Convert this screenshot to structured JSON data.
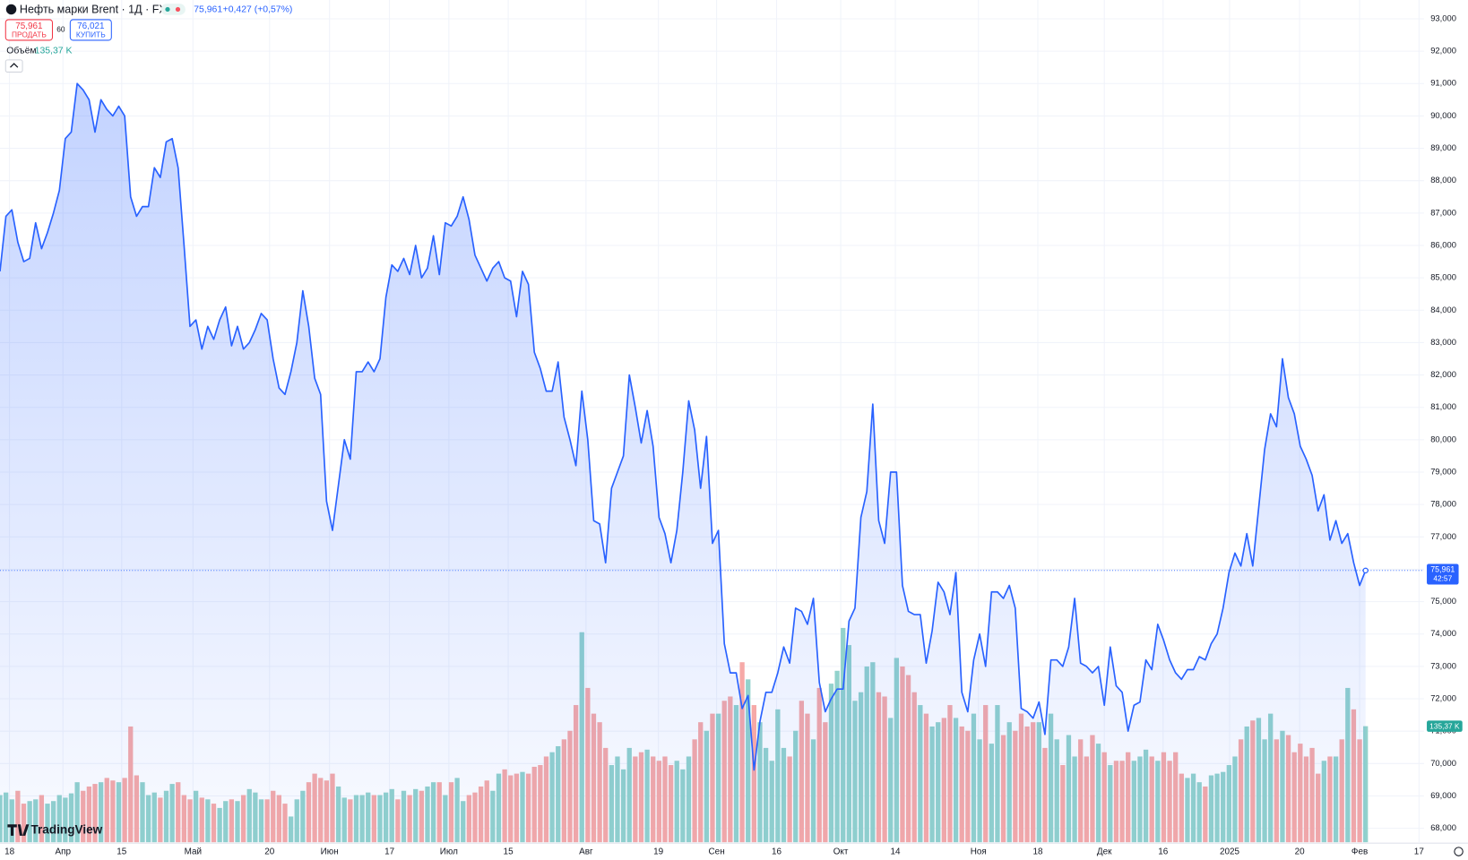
{
  "header": {
    "title": "Нефть марки Brent · 1Д · FX",
    "change": "+0,427 (+0,57%)",
    "sell": {
      "price": "75,961",
      "label": "ПРОДАТЬ"
    },
    "spread": "60",
    "buy": {
      "price": "76,021",
      "label": "КУПИТЬ"
    },
    "volume_legend": {
      "label": "Объём",
      "value": "135,37 K"
    },
    "brand": "TradingView"
  },
  "chart_data": {
    "type": "line",
    "color": "#2962ff",
    "values": [
      85.2,
      86.9,
      87.1,
      86.1,
      85.5,
      85.6,
      86.7,
      85.9,
      86.4,
      87.0,
      87.7,
      89.3,
      89.5,
      91.0,
      90.8,
      90.5,
      89.5,
      90.5,
      90.2,
      90.0,
      90.3,
      90.0,
      87.5,
      86.9,
      87.2,
      87.2,
      88.4,
      88.1,
      89.2,
      89.3,
      88.4,
      86.0,
      83.5,
      83.7,
      82.8,
      83.5,
      83.1,
      83.7,
      84.1,
      82.9,
      83.5,
      82.8,
      83.0,
      83.4,
      83.9,
      83.7,
      82.5,
      81.6,
      81.4,
      82.1,
      83.0,
      84.6,
      83.5,
      81.9,
      81.4,
      78.1,
      77.2,
      78.6,
      80.0,
      79.4,
      82.1,
      82.1,
      82.4,
      82.1,
      82.5,
      84.4,
      85.4,
      85.2,
      85.6,
      85.1,
      86.0,
      85.0,
      85.3,
      86.3,
      85.1,
      86.7,
      86.6,
      86.9,
      87.5,
      86.8,
      85.7,
      85.3,
      84.9,
      85.3,
      85.5,
      85.0,
      84.9,
      83.8,
      85.2,
      84.8,
      82.7,
      82.2,
      81.5,
      81.5,
      82.4,
      80.7,
      80.0,
      79.2,
      81.5,
      80.0,
      77.5,
      77.4,
      76.2,
      78.5,
      79.0,
      79.5,
      82.0,
      81.0,
      79.9,
      80.9,
      79.8,
      77.6,
      77.1,
      76.2,
      77.2,
      79.0,
      81.2,
      80.3,
      78.5,
      80.1,
      76.8,
      77.2,
      73.7,
      72.8,
      72.8,
      71.7,
      72.1,
      69.8,
      71.3,
      72.2,
      72.2,
      72.8,
      73.6,
      73.1,
      74.8,
      74.7,
      74.3,
      75.1,
      72.5,
      71.6,
      72.0,
      72.3,
      72.3,
      74.4,
      74.8,
      77.6,
      78.4,
      81.1,
      77.5,
      76.8,
      79.0,
      79.0,
      75.5,
      74.7,
      74.6,
      74.6,
      73.1,
      74.1,
      75.6,
      75.3,
      74.6,
      75.9,
      72.2,
      71.6,
      73.2,
      74.0,
      73.0,
      75.3,
      75.3,
      75.1,
      75.5,
      74.8,
      71.7,
      71.6,
      71.4,
      71.9,
      70.9,
      73.2,
      73.2,
      73.0,
      73.6,
      75.1,
      73.1,
      73.0,
      72.8,
      73.0,
      71.8,
      73.6,
      72.4,
      72.2,
      71.0,
      71.8,
      71.9,
      73.2,
      72.9,
      74.3,
      73.8,
      73.2,
      72.8,
      72.6,
      72.9,
      72.9,
      73.3,
      73.2,
      73.7,
      74.0,
      74.8,
      75.9,
      76.5,
      76.1,
      77.1,
      76.1,
      77.9,
      79.7,
      80.8,
      80.4,
      82.5,
      81.3,
      80.8,
      79.8,
      79.4,
      78.9,
      77.8,
      78.3,
      76.9,
      77.5,
      76.8,
      77.1,
      76.2,
      75.5,
      75.961
    ],
    "volume": [
      55,
      58,
      50,
      60,
      45,
      48,
      50,
      55,
      45,
      48,
      55,
      52,
      57,
      70,
      60,
      65,
      68,
      70,
      75,
      72,
      70,
      75,
      135,
      78,
      70,
      55,
      58,
      52,
      60,
      68,
      70,
      55,
      50,
      60,
      52,
      50,
      45,
      40,
      48,
      50,
      48,
      55,
      62,
      58,
      50,
      50,
      60,
      55,
      45,
      30,
      50,
      60,
      70,
      80,
      75,
      72,
      80,
      65,
      52,
      50,
      55,
      55,
      58,
      55,
      55,
      58,
      62,
      50,
      60,
      55,
      62,
      60,
      65,
      70,
      70,
      55,
      70,
      75,
      48,
      55,
      58,
      65,
      72,
      60,
      80,
      85,
      78,
      80,
      82,
      80,
      88,
      90,
      100,
      105,
      112,
      120,
      130,
      160,
      245,
      180,
      150,
      140,
      110,
      90,
      100,
      85,
      110,
      100,
      105,
      108,
      100,
      95,
      100,
      90,
      95,
      85,
      100,
      120,
      140,
      130,
      150,
      150,
      165,
      170,
      160,
      210,
      190,
      160,
      140,
      110,
      95,
      155,
      110,
      100,
      130,
      165,
      150,
      120,
      180,
      140,
      185,
      200,
      250,
      230,
      165,
      175,
      205,
      210,
      175,
      170,
      145,
      215,
      205,
      195,
      175,
      160,
      150,
      135,
      140,
      145,
      160,
      145,
      135,
      130,
      150,
      120,
      160,
      115,
      160,
      125,
      140,
      130,
      150,
      135,
      140,
      140,
      110,
      150,
      120,
      90,
      125,
      100,
      120,
      100,
      125,
      115,
      105,
      90,
      95,
      95,
      105,
      95,
      100,
      108,
      100,
      95,
      105,
      95,
      105,
      80,
      75,
      80,
      70,
      65,
      78,
      80,
      82,
      90,
      100,
      120,
      135,
      142,
      145,
      120,
      150,
      120,
      130,
      125,
      105,
      115,
      100,
      110,
      80,
      95,
      100,
      100,
      120,
      180,
      155,
      120,
      135.37
    ],
    "volume_colors": {
      "up": "#92d2cc",
      "down": "#f6a9a7"
    },
    "ylim": [
      67.57,
      93.58
    ],
    "yticks": [
      {
        "value": 68,
        "label": "68,000"
      },
      {
        "value": 69,
        "label": "69,000"
      },
      {
        "value": 70,
        "label": "70,000"
      },
      {
        "value": 71,
        "label": "71,000"
      },
      {
        "value": 72,
        "label": "72,000"
      },
      {
        "value": 73,
        "label": "73,000"
      },
      {
        "value": 74,
        "label": "74,000"
      },
      {
        "value": 75,
        "label": "75,000"
      },
      {
        "value": 76,
        "label": "76,000"
      },
      {
        "value": 77,
        "label": "77,000"
      },
      {
        "value": 78,
        "label": "78,000"
      },
      {
        "value": 79,
        "label": "79,000"
      },
      {
        "value": 80,
        "label": "80,000"
      },
      {
        "value": 81,
        "label": "81,000"
      },
      {
        "value": 82,
        "label": "82,000"
      },
      {
        "value": 83,
        "label": "83,000"
      },
      {
        "value": 84,
        "label": "84,000"
      },
      {
        "value": 85,
        "label": "85,000"
      },
      {
        "value": 86,
        "label": "86,000"
      },
      {
        "value": 87,
        "label": "87,000"
      },
      {
        "value": 88,
        "label": "88,000"
      },
      {
        "value": 89,
        "label": "89,000"
      },
      {
        "value": 90,
        "label": "90,000"
      },
      {
        "value": 91,
        "label": "91,000"
      },
      {
        "value": 92,
        "label": "92,000"
      },
      {
        "value": 93,
        "label": "93,000"
      }
    ],
    "xlim": [
      0,
      240
    ],
    "xticks": [
      {
        "value": 1.6,
        "label": "18"
      },
      {
        "value": 10.6,
        "label": "Апр"
      },
      {
        "value": 20.5,
        "label": "15"
      },
      {
        "value": 32.5,
        "label": "Май"
      },
      {
        "value": 45.4,
        "label": "20"
      },
      {
        "value": 55.5,
        "label": "Июн"
      },
      {
        "value": 65.6,
        "label": "17"
      },
      {
        "value": 75.6,
        "label": "Июл"
      },
      {
        "value": 85.6,
        "label": "15"
      },
      {
        "value": 98.7,
        "label": "Авг"
      },
      {
        "value": 110.9,
        "label": "19"
      },
      {
        "value": 120.7,
        "label": "Сен"
      },
      {
        "value": 130.8,
        "label": "16"
      },
      {
        "value": 141.6,
        "label": "Окт"
      },
      {
        "value": 150.8,
        "label": "14"
      },
      {
        "value": 164.8,
        "label": "Ноя"
      },
      {
        "value": 174.8,
        "label": "18"
      },
      {
        "value": 186,
        "label": "Дек"
      },
      {
        "value": 195.9,
        "label": "16"
      },
      {
        "value": 207.1,
        "label": "2025"
      },
      {
        "value": 218.9,
        "label": "20"
      },
      {
        "value": 229,
        "label": "Фев"
      },
      {
        "value": 239,
        "label": "17"
      }
    ],
    "grid": true,
    "price_tag": {
      "value": 75.961,
      "label": "75,961",
      "countdown": "42:57"
    },
    "volume_tag": {
      "value": 135.37,
      "label": "135,37 K"
    }
  }
}
